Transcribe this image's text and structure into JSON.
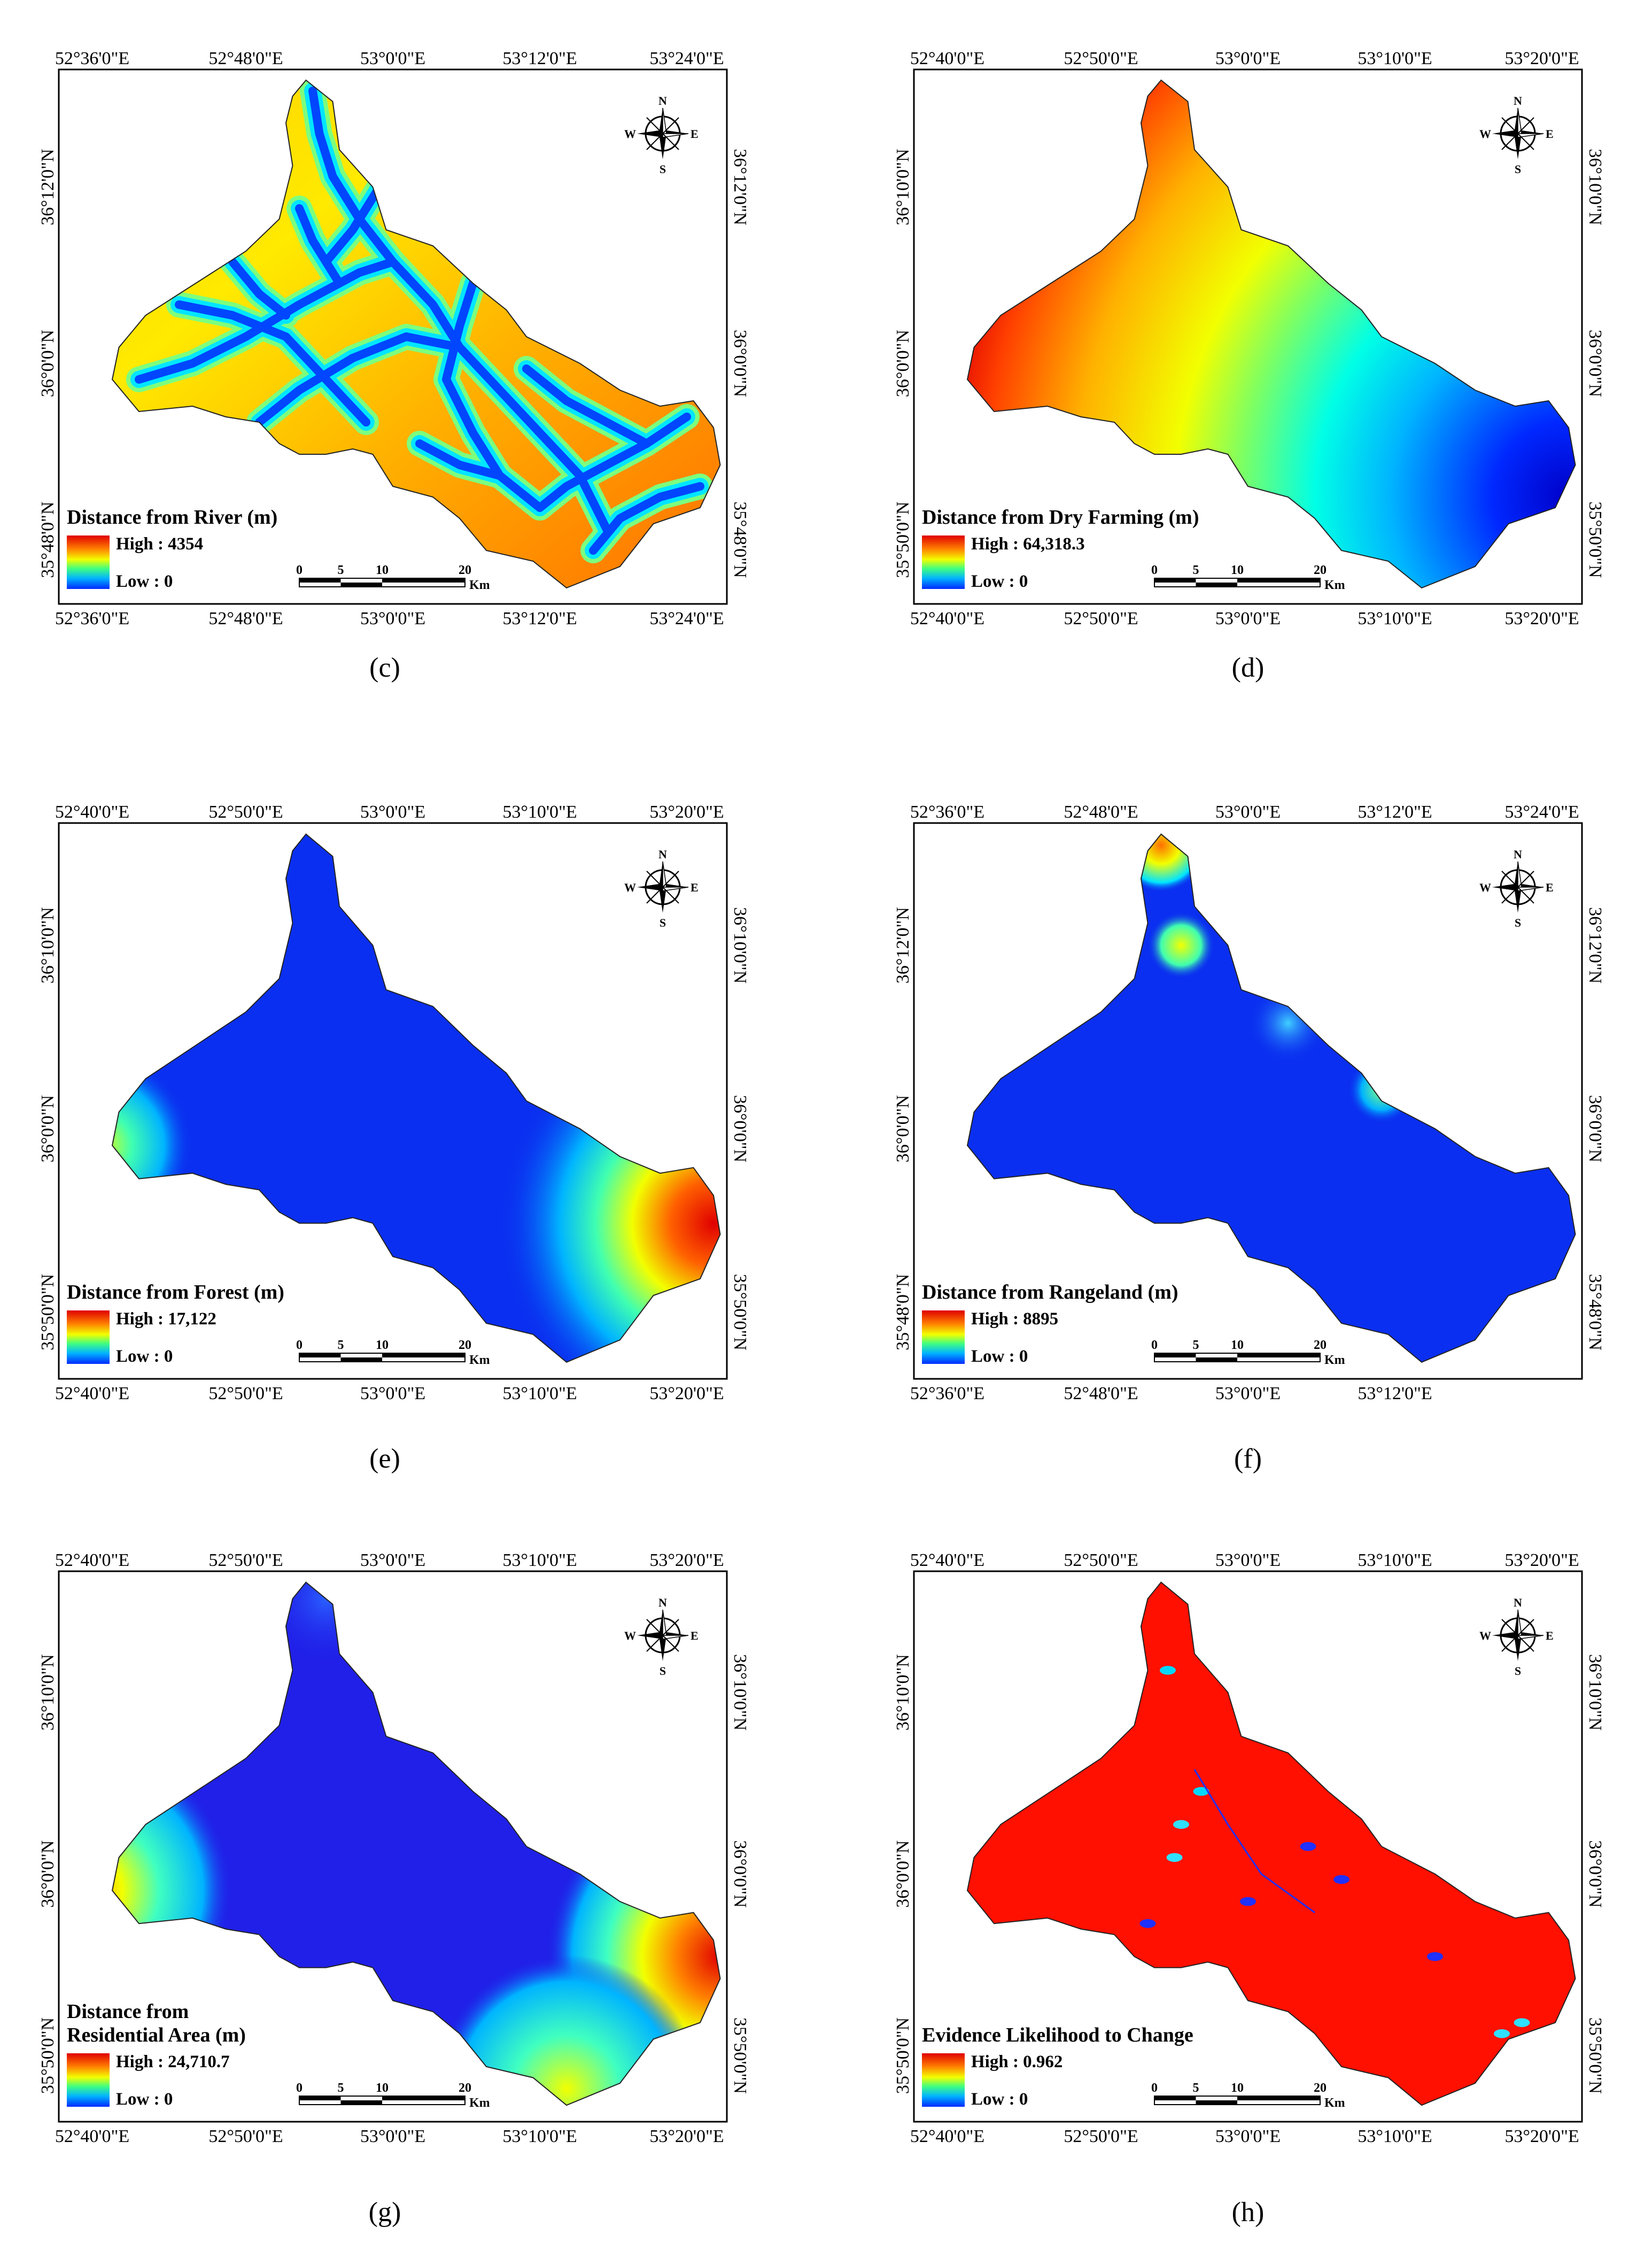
{
  "compass": {
    "n": "N",
    "s": "S",
    "e": "E",
    "w": "W"
  },
  "scale_bar": {
    "labels": [
      "0",
      "5",
      "10",
      "20"
    ],
    "unit": "Km"
  },
  "panels": [
    {
      "caption": "(c)",
      "top_ticks": [
        "52°36'0\"E",
        "52°48'0\"E",
        "53°0'0\"E",
        "53°12'0\"E",
        "53°24'0\"E"
      ],
      "bottom_ticks": [
        "52°36'0\"E",
        "52°48'0\"E",
        "53°0'0\"E",
        "53°12'0\"E",
        "53°24'0\"E"
      ],
      "left_ticks": [
        "36°12'0\"N",
        "36°0'0\"N",
        "35°48'0\"N"
      ],
      "right_ticks": [
        "36°12'0\"N",
        "36°0'0\"N",
        "35°48'0\"N"
      ],
      "legend": {
        "title_lines": [
          "Distance from River (m)"
        ],
        "high": "High : 4354",
        "low": "Low : 0"
      },
      "raster": "river"
    },
    {
      "caption": "(d)",
      "top_ticks": [
        "52°40'0\"E",
        "52°50'0\"E",
        "53°0'0\"E",
        "53°10'0\"E",
        "53°20'0\"E"
      ],
      "bottom_ticks": [
        "52°40'0\"E",
        "52°50'0\"E",
        "53°0'0\"E",
        "53°10'0\"E",
        "53°20'0\"E"
      ],
      "left_ticks": [
        "36°10'0\"N",
        "36°0'0\"N",
        "35°50'0\"N"
      ],
      "right_ticks": [
        "36°10'0\"N",
        "36°0'0\"N",
        "35°50'0\"N"
      ],
      "legend": {
        "title_lines": [
          "Distance from Dry Farming (m)"
        ],
        "high": "High : 64,318.3",
        "low": "Low : 0"
      },
      "raster": "dry"
    },
    {
      "caption": "(e)",
      "top_ticks": [
        "52°40'0\"E",
        "52°50'0\"E",
        "53°0'0\"E",
        "53°10'0\"E",
        "53°20'0\"E"
      ],
      "bottom_ticks": [
        "52°40'0\"E",
        "52°50'0\"E",
        "53°0'0\"E",
        "53°10'0\"E",
        "53°20'0\"E"
      ],
      "left_ticks": [
        "36°10'0\"N",
        "36°0'0\"N",
        "35°50'0\"N"
      ],
      "right_ticks": [
        "36°10'0\"N",
        "36°0'0\"N",
        "35°50'0\"N"
      ],
      "legend": {
        "title_lines": [
          "Distance from Forest (m)"
        ],
        "high": "High : 17,122",
        "low": "Low : 0"
      },
      "raster": "forest"
    },
    {
      "caption": "(f)",
      "top_ticks": [
        "52°36'0\"E",
        "52°48'0\"E",
        "53°0'0\"E",
        "53°12'0\"E",
        "53°24'0\"E"
      ],
      "bottom_ticks": [
        "52°36'0\"E",
        "52°48'0\"E",
        "53°0'0\"E",
        "53°12'0\"E",
        ""
      ],
      "left_ticks": [
        "36°12'0\"N",
        "36°0'0\"N",
        "35°48'0\"N"
      ],
      "right_ticks": [
        "36°12'0\"N",
        "36°0'0\"N",
        "35°48'0\"N"
      ],
      "legend": {
        "title_lines": [
          "Distance from Rangeland (m)"
        ],
        "high": "High : 8895",
        "low": "Low : 0"
      },
      "raster": "range"
    },
    {
      "caption": "(g)",
      "top_ticks": [
        "52°40'0\"E",
        "52°50'0\"E",
        "53°0'0\"E",
        "53°10'0\"E",
        "53°20'0\"E"
      ],
      "bottom_ticks": [
        "52°40'0\"E",
        "52°50'0\"E",
        "53°0'0\"E",
        "53°10'0\"E",
        "53°20'0\"E"
      ],
      "left_ticks": [
        "36°10'0\"N",
        "36°0'0\"N",
        "35°50'0\"N"
      ],
      "right_ticks": [
        "36°10'0\"N",
        "36°0'0\"N",
        "35°50'0\"N"
      ],
      "legend": {
        "title_lines": [
          "Distance from",
          "Residential Area (m)"
        ],
        "high": "High : 24,710.7",
        "low": "Low : 0"
      },
      "raster": "resid"
    },
    {
      "caption": "(h)",
      "top_ticks": [
        "52°40'0\"E",
        "52°50'0\"E",
        "53°0'0\"E",
        "53°10'0\"E",
        "53°20'0\"E"
      ],
      "bottom_ticks": [
        "52°40'0\"E",
        "52°50'0\"E",
        "53°0'0\"E",
        "53°10'0\"E",
        "53°20'0\"E"
      ],
      "left_ticks": [
        "36°10'0\"N",
        "36°0'0\"N",
        "35°50'0\"N"
      ],
      "right_ticks": [
        "36°10'0\"N",
        "36°0'0\"N",
        "35°50'0\"N"
      ],
      "legend": {
        "title_lines": [
          "Evidence Likelihood to Change"
        ],
        "high": "High : 0.962",
        "low": "Low : 0"
      },
      "raster": "evidence"
    }
  ]
}
